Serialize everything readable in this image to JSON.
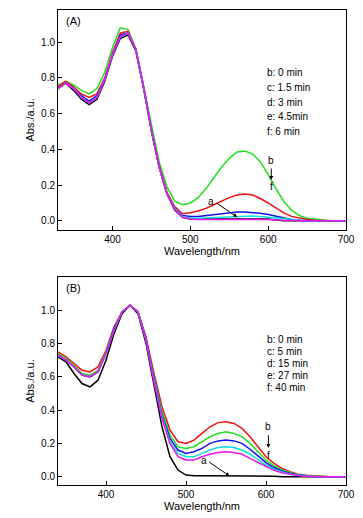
{
  "chart_data": [
    {
      "type": "line",
      "title": "(A)",
      "x_label": "Wavelength/nm",
      "y_label": "Abs./a.u.",
      "xlim": [
        330,
        700
      ],
      "xticks": [
        400,
        500,
        600,
        700
      ],
      "ylim": [
        -0.05,
        1.18
      ],
      "yticks": [
        {
          "value": 0,
          "label": "0.0"
        },
        0.2,
        0.4,
        0.6,
        0.8,
        {
          "value": 1,
          "label": "1.0"
        }
      ],
      "grid": false,
      "x": [
        330,
        340,
        350,
        360,
        370,
        380,
        390,
        400,
        410,
        420,
        430,
        440,
        450,
        460,
        470,
        480,
        490,
        500,
        510,
        520,
        530,
        540,
        550,
        560,
        570,
        580,
        590,
        600,
        610,
        620,
        630,
        640,
        650,
        660,
        670,
        680,
        690,
        700
      ],
      "series": [
        {
          "name": "a",
          "color": "#000000",
          "values": [
            0.74,
            0.77,
            0.73,
            0.68,
            0.65,
            0.68,
            0.78,
            0.92,
            1.02,
            1.04,
            0.95,
            0.74,
            0.5,
            0.3,
            0.15,
            0.06,
            0.02,
            0.01,
            0.01,
            0.01,
            0.01,
            0.01,
            0.01,
            0.01,
            0.01,
            0.01,
            0.01,
            0.01,
            0.005,
            0,
            0,
            0,
            0,
            0,
            0,
            0,
            0,
            0
          ]
        },
        {
          "name": "b: 0 min",
          "color": "#22dd22",
          "values": [
            0.76,
            0.78,
            0.76,
            0.73,
            0.71,
            0.74,
            0.83,
            0.97,
            1.08,
            1.07,
            0.96,
            0.75,
            0.52,
            0.33,
            0.19,
            0.11,
            0.09,
            0.1,
            0.13,
            0.18,
            0.24,
            0.3,
            0.35,
            0.385,
            0.39,
            0.375,
            0.33,
            0.26,
            0.18,
            0.11,
            0.06,
            0.03,
            0.015,
            0.01,
            0.005,
            0,
            0,
            0
          ]
        },
        {
          "name": "c: 1.5 min",
          "color": "#ee1111",
          "values": [
            0.75,
            0.78,
            0.75,
            0.71,
            0.69,
            0.71,
            0.8,
            0.94,
            1.05,
            1.06,
            0.96,
            0.75,
            0.51,
            0.31,
            0.16,
            0.08,
            0.04,
            0.045,
            0.055,
            0.07,
            0.09,
            0.11,
            0.13,
            0.145,
            0.15,
            0.145,
            0.125,
            0.1,
            0.07,
            0.045,
            0.025,
            0.015,
            0.008,
            0.004,
            0,
            0,
            0,
            0
          ]
        },
        {
          "name": "d: 3 min",
          "color": "#1111ee",
          "values": [
            0.74,
            0.77,
            0.74,
            0.7,
            0.67,
            0.7,
            0.79,
            0.93,
            1.04,
            1.05,
            0.96,
            0.75,
            0.51,
            0.3,
            0.15,
            0.07,
            0.03,
            0.025,
            0.025,
            0.03,
            0.035,
            0.04,
            0.045,
            0.05,
            0.05,
            0.048,
            0.042,
            0.035,
            0.025,
            0.015,
            0.008,
            0.004,
            0,
            0,
            0,
            0,
            0,
            0
          ]
        },
        {
          "name": "e: 4.5min",
          "color": "#11dddd",
          "values": [
            0.74,
            0.77,
            0.74,
            0.69,
            0.66,
            0.69,
            0.79,
            0.93,
            1.03,
            1.05,
            0.96,
            0.75,
            0.51,
            0.3,
            0.15,
            0.07,
            0.025,
            0.015,
            0.015,
            0.017,
            0.02,
            0.022,
            0.025,
            0.027,
            0.028,
            0.027,
            0.024,
            0.02,
            0.015,
            0.01,
            0.005,
            0,
            0,
            0,
            0,
            0,
            0,
            0
          ]
        },
        {
          "name": "f: 6 min",
          "color": "#ee11ee",
          "values": [
            0.74,
            0.77,
            0.74,
            0.69,
            0.66,
            0.69,
            0.79,
            0.93,
            1.03,
            1.05,
            0.96,
            0.75,
            0.51,
            0.3,
            0.15,
            0.065,
            0.02,
            0.01,
            0.008,
            0.008,
            0.01,
            0.01,
            0.012,
            0.012,
            0.012,
            0.012,
            0.01,
            0.008,
            0.005,
            0.003,
            0,
            0,
            0,
            0,
            0,
            0,
            0,
            0
          ]
        }
      ],
      "annotations": [
        {
          "text": "a",
          "x": 527,
          "y": 0.11
        },
        {
          "text": "b",
          "x": 604,
          "y": 0.34
        },
        {
          "text": "f",
          "x": 604,
          "y": 0.19
        }
      ]
    },
    {
      "type": "line",
      "title": "(B)",
      "x_label": "Wavelength/nm",
      "y_label": "Abs./a.u.",
      "xlim": [
        340,
        700
      ],
      "xticks": [
        400,
        500,
        600,
        700
      ],
      "ylim": [
        -0.05,
        1.2
      ],
      "yticks": [
        {
          "value": 0,
          "label": "0.0"
        },
        0.2,
        0.4,
        0.6,
        0.8,
        {
          "value": 1,
          "label": "1.0"
        }
      ],
      "grid": false,
      "x": [
        340,
        350,
        360,
        370,
        380,
        390,
        400,
        410,
        420,
        430,
        440,
        450,
        460,
        470,
        480,
        490,
        500,
        510,
        520,
        530,
        540,
        550,
        560,
        570,
        580,
        590,
        600,
        610,
        620,
        630,
        640,
        650,
        660,
        670,
        680,
        690,
        700
      ],
      "series": [
        {
          "name": "a",
          "color": "#000000",
          "values": [
            0.72,
            0.69,
            0.62,
            0.56,
            0.54,
            0.58,
            0.7,
            0.86,
            0.98,
            1.03,
            0.98,
            0.8,
            0.55,
            0.3,
            0.12,
            0.04,
            0.01,
            0.005,
            0.005,
            0.005,
            0.005,
            0.005,
            0.005,
            0.005,
            0.005,
            0.005,
            0.005,
            0.003,
            0,
            0,
            0,
            0,
            0,
            0,
            0,
            0,
            0
          ]
        },
        {
          "name": "b: 0 min",
          "color": "#ee1111",
          "values": [
            0.75,
            0.72,
            0.68,
            0.64,
            0.63,
            0.66,
            0.76,
            0.9,
            0.99,
            1.03,
            0.99,
            0.84,
            0.62,
            0.42,
            0.28,
            0.21,
            0.2,
            0.22,
            0.26,
            0.3,
            0.325,
            0.33,
            0.32,
            0.29,
            0.24,
            0.18,
            0.12,
            0.08,
            0.05,
            0.03,
            0.015,
            0.008,
            0.004,
            0,
            0,
            0,
            0
          ]
        },
        {
          "name": "c: 5 min",
          "color": "#22dd22",
          "values": [
            0.74,
            0.71,
            0.67,
            0.62,
            0.61,
            0.64,
            0.75,
            0.89,
            0.99,
            1.03,
            0.99,
            0.83,
            0.6,
            0.39,
            0.25,
            0.18,
            0.17,
            0.18,
            0.21,
            0.24,
            0.26,
            0.27,
            0.26,
            0.24,
            0.2,
            0.15,
            0.1,
            0.065,
            0.04,
            0.025,
            0.012,
            0.006,
            0.003,
            0,
            0,
            0,
            0
          ]
        },
        {
          "name": "d: 15 min",
          "color": "#1111ee",
          "values": [
            0.73,
            0.7,
            0.66,
            0.61,
            0.6,
            0.63,
            0.74,
            0.89,
            0.99,
            1.03,
            0.99,
            0.83,
            0.59,
            0.37,
            0.23,
            0.16,
            0.14,
            0.15,
            0.17,
            0.2,
            0.215,
            0.22,
            0.215,
            0.2,
            0.165,
            0.125,
            0.085,
            0.055,
            0.035,
            0.02,
            0.01,
            0.005,
            0,
            0,
            0,
            0,
            0
          ]
        },
        {
          "name": "e: 27 min",
          "color": "#11dddd",
          "values": [
            0.73,
            0.7,
            0.66,
            0.61,
            0.6,
            0.63,
            0.74,
            0.88,
            0.99,
            1.03,
            0.99,
            0.82,
            0.58,
            0.36,
            0.21,
            0.14,
            0.12,
            0.12,
            0.14,
            0.16,
            0.175,
            0.18,
            0.175,
            0.16,
            0.135,
            0.1,
            0.07,
            0.045,
            0.028,
            0.016,
            0.008,
            0.004,
            0,
            0,
            0,
            0,
            0
          ]
        },
        {
          "name": "f: 40 min",
          "color": "#ee11ee",
          "values": [
            0.73,
            0.7,
            0.66,
            0.61,
            0.6,
            0.63,
            0.74,
            0.88,
            0.99,
            1.03,
            0.99,
            0.82,
            0.57,
            0.35,
            0.2,
            0.12,
            0.1,
            0.1,
            0.12,
            0.135,
            0.145,
            0.15,
            0.145,
            0.135,
            0.11,
            0.085,
            0.06,
            0.038,
            0.024,
            0.014,
            0.007,
            0.003,
            0,
            0,
            0,
            0,
            0
          ]
        }
      ],
      "annotations": [
        {
          "text": "a",
          "x": 522,
          "y": 0.1
        },
        {
          "text": "b",
          "x": 603,
          "y": 0.3
        },
        {
          "text": "f",
          "x": 603,
          "y": 0.13
        }
      ]
    }
  ]
}
